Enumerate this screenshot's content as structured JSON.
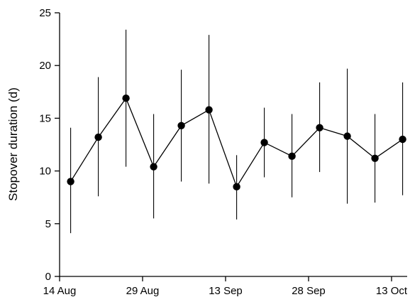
{
  "chart_data": {
    "type": "line",
    "title": "",
    "xlabel": "",
    "ylabel": "Stopover duration (d)",
    "ylim": [
      0,
      25
    ],
    "xlim": [
      "2020-08-14",
      "2020-10-18"
    ],
    "grid": false,
    "x_ticks": [
      {
        "date": "2020-08-14",
        "label": "14 Aug"
      },
      {
        "date": "2020-08-29",
        "label": "29 Aug"
      },
      {
        "date": "2020-09-13",
        "label": "13 Sep"
      },
      {
        "date": "2020-09-28",
        "label": "28 Sep"
      },
      {
        "date": "2020-10-13",
        "label": "13 Oct"
      }
    ],
    "y_ticks": [
      0,
      5,
      10,
      15,
      20,
      25
    ],
    "series": [
      {
        "x": [
          "2020-08-16",
          "2020-08-21",
          "2020-08-26",
          "2020-08-31",
          "2020-09-05",
          "2020-09-10",
          "2020-09-15",
          "2020-09-20",
          "2020-09-25",
          "2020-09-30",
          "2020-10-05",
          "2020-10-10",
          "2020-10-15"
        ],
        "y": [
          9.0,
          13.2,
          16.9,
          10.4,
          14.3,
          15.8,
          8.5,
          12.7,
          11.4,
          14.1,
          13.3,
          11.2,
          13.0
        ],
        "err_low": [
          4.1,
          7.6,
          10.4,
          5.5,
          9.0,
          8.8,
          5.4,
          9.4,
          7.5,
          9.9,
          6.9,
          7.0,
          7.7
        ],
        "err_high": [
          14.1,
          18.9,
          23.4,
          15.4,
          19.6,
          22.9,
          11.5,
          16.0,
          15.4,
          18.4,
          19.7,
          15.4,
          18.4
        ]
      }
    ]
  }
}
